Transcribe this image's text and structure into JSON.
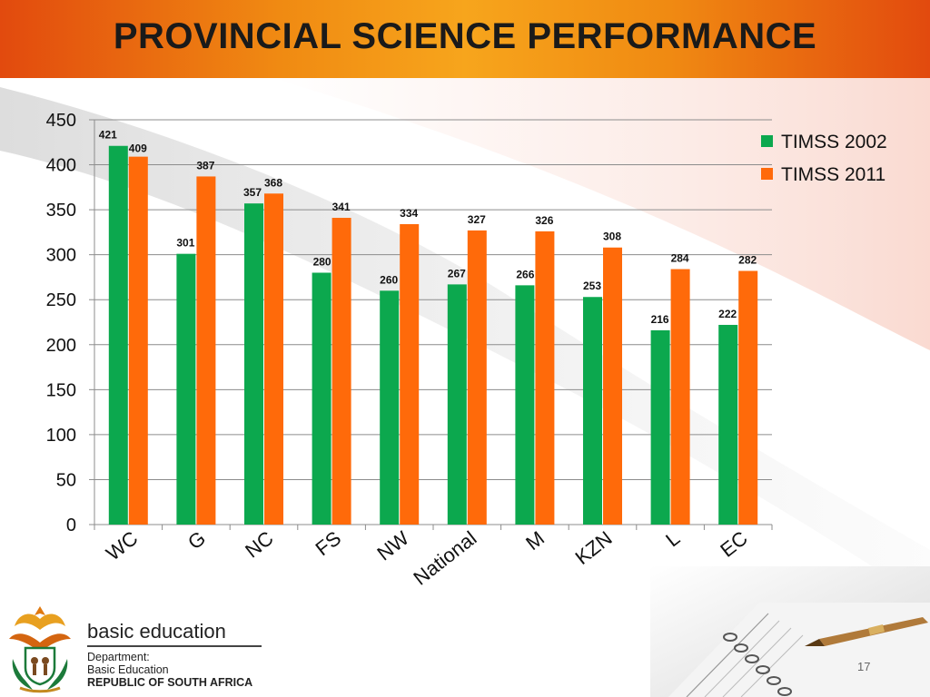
{
  "slide": {
    "title": "PROVINCIAL SCIENCE PERFORMANCE",
    "page_number": "17"
  },
  "organization": {
    "name": "basic education",
    "line1": "Department:",
    "line2": "Basic Education",
    "line3": "REPUBLIC OF SOUTH AFRICA"
  },
  "colors": {
    "header_gradient": [
      "#e24a0e",
      "#f7a51c"
    ],
    "series_2002": "#0ca84e",
    "series_2011": "#ff6a0a"
  },
  "icons": [
    "coat-of-arms-icon",
    "notebook-pen-icon"
  ],
  "chart_data": {
    "type": "bar",
    "categories": [
      "WC",
      "G",
      "NC",
      "FS",
      "NW",
      "National",
      "M",
      "KZN",
      "L",
      "EC"
    ],
    "series": [
      {
        "name": "TIMSS 2002",
        "values": [
          421,
          301,
          357,
          280,
          260,
          267,
          266,
          253,
          216,
          222
        ],
        "color": "#0ca84e"
      },
      {
        "name": "TIMSS 2011",
        "values": [
          409,
          387,
          368,
          341,
          334,
          327,
          326,
          308,
          284,
          282
        ],
        "color": "#ff6a0a"
      }
    ],
    "title": "",
    "xlabel": "",
    "ylabel": "",
    "ylim": [
      0,
      450
    ],
    "yticks": [
      0,
      50,
      100,
      150,
      200,
      250,
      300,
      350,
      400,
      450
    ],
    "grid": true,
    "legend": "top-right",
    "data_labels": true,
    "x_tick_rotation": "diagonal"
  }
}
